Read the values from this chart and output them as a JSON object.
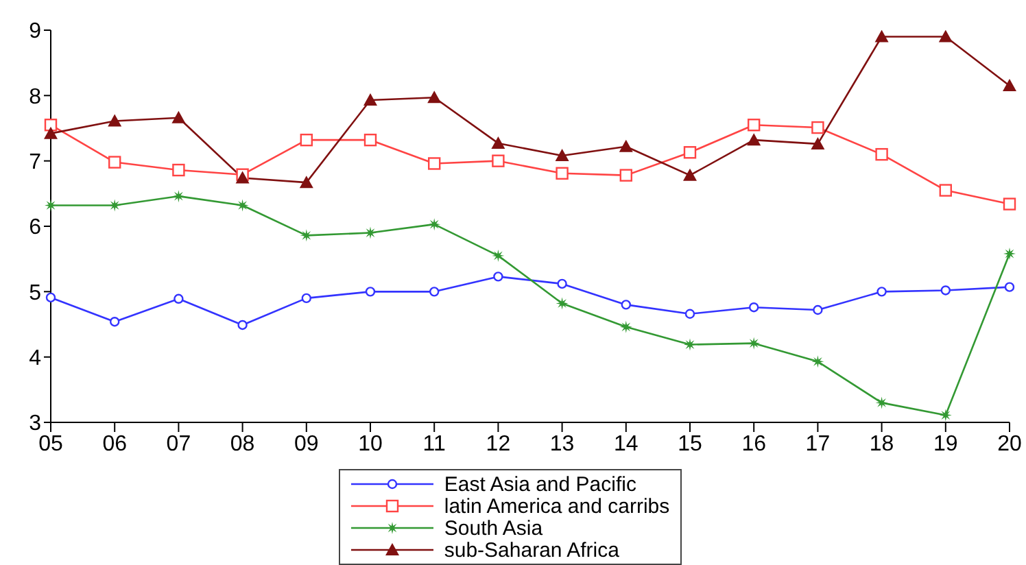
{
  "chart_data": {
    "type": "line",
    "categories": [
      "05",
      "06",
      "07",
      "08",
      "09",
      "10",
      "11",
      "12",
      "13",
      "14",
      "15",
      "16",
      "17",
      "18",
      "19",
      "20"
    ],
    "series": [
      {
        "name": "East Asia and Pacific",
        "color": "#3333ff",
        "marker": "circle",
        "values": [
          4.91,
          4.54,
          4.89,
          4.49,
          4.9,
          5.0,
          5.0,
          5.23,
          5.12,
          4.8,
          4.66,
          4.76,
          4.72,
          5.0,
          5.02,
          5.07
        ]
      },
      {
        "name": "latin America and carribs",
        "color": "#ff4444",
        "marker": "square",
        "values": [
          7.55,
          6.98,
          6.86,
          6.79,
          7.32,
          7.32,
          6.96,
          7.0,
          6.81,
          6.78,
          7.13,
          7.55,
          7.51,
          7.1,
          6.55,
          6.34
        ]
      },
      {
        "name": "South Asia",
        "color": "#339933",
        "marker": "star",
        "values": [
          6.32,
          6.32,
          6.46,
          6.32,
          5.86,
          5.9,
          6.03,
          5.55,
          4.82,
          4.46,
          4.19,
          4.21,
          3.93,
          3.3,
          3.11,
          5.58
        ]
      },
      {
        "name": "sub-Saharan Africa",
        "color": "#801010",
        "marker": "triangle",
        "values": [
          7.42,
          7.61,
          7.66,
          6.74,
          6.67,
          7.93,
          7.97,
          7.27,
          7.08,
          7.22,
          6.78,
          7.32,
          7.26,
          8.9,
          8.9,
          8.15
        ]
      }
    ],
    "ylim": [
      3,
      9
    ],
    "yticks": [
      3,
      4,
      5,
      6,
      7,
      8,
      9
    ],
    "grid": false,
    "legend": "bottom"
  }
}
